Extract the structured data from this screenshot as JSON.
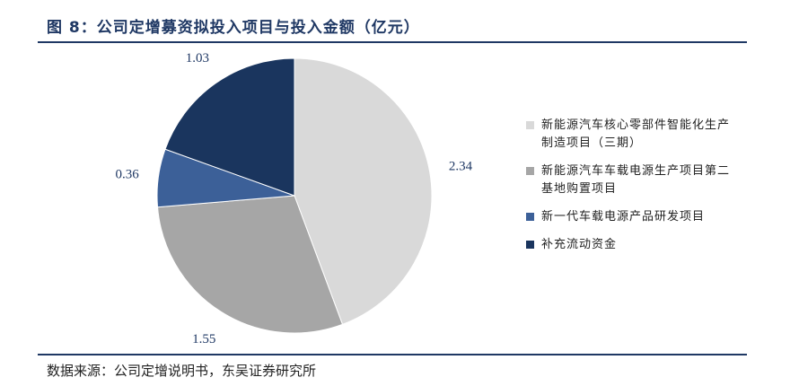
{
  "header": {
    "title": "图 8：公司定增募资拟投入项目与投入金额（亿元）"
  },
  "footer": {
    "source": "数据来源：公司定增说明书，东吴证券研究所"
  },
  "chart_data": {
    "type": "pie",
    "title": "图 8：公司定增募资拟投入项目与投入金额（亿元）",
    "legend_position": "right",
    "slices": [
      {
        "label": "新能源汽车核心零部件智能化生产制造项目（三期）",
        "value": 2.34,
        "value_label": "2.34",
        "color": "#d9d9d9"
      },
      {
        "label": "新能源汽车车载电源生产项目第二基地购置项目",
        "value": 1.55,
        "value_label": "1.55",
        "color": "#a6a6a6"
      },
      {
        "label": "新一代车载电源产品研发项目",
        "value": 0.36,
        "value_label": "0.36",
        "color": "#3c6098"
      },
      {
        "label": "补充流动资金",
        "value": 1.03,
        "value_label": "1.03",
        "color": "#1a355e"
      }
    ]
  }
}
